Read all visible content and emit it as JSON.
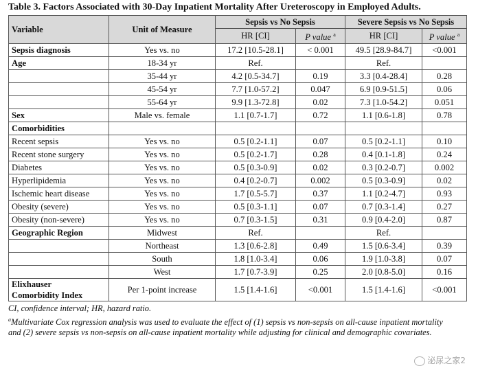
{
  "caption": "Table 3.  Factors Associated with 30-Day Inpatient Mortality After Ureteroscopy in Employed Adults.",
  "headers": {
    "variable": "Variable",
    "unit": "Unit of Measure",
    "group1": "Sepsis vs No Sepsis",
    "group2": "Severe Sepsis vs No Sepsis",
    "hr": "HR [CI]",
    "pvalue": "P value",
    "pvalue_sup": "a"
  },
  "rows": [
    {
      "variable": "Sepsis diagnosis",
      "unit": "Yes vs. no",
      "hr1": "17.2 [10.5-28.1]",
      "p1": "< 0.001",
      "hr2": "49.5 [28.9-84.7]",
      "p2": "<0.001"
    },
    {
      "variable": "Age",
      "unit": "18-34 yr",
      "hr1": "Ref.",
      "p1": "",
      "hr2": "Ref.",
      "p2": ""
    },
    {
      "variable": "",
      "unit": "35-44 yr",
      "hr1": "4.2 [0.5-34.7]",
      "p1": "0.19",
      "hr2": "3.3 [0.4-28.4]",
      "p2": "0.28"
    },
    {
      "variable": "",
      "unit": "45-54 yr",
      "hr1": "7.7 [1.0-57.2]",
      "p1": "0.047",
      "hr2": "6.9 [0.9-51.5]",
      "p2": "0.06"
    },
    {
      "variable": "",
      "unit": "55-64 yr",
      "hr1": "9.9 [1.3-72.8]",
      "p1": "0.02",
      "hr2": "7.3 [1.0-54.2]",
      "p2": "0.051"
    },
    {
      "variable": "Sex",
      "unit": "Male vs. female",
      "hr1": "1.1 [0.7-1.7]",
      "p1": "0.72",
      "hr2": "1.1 [0.6-1.8]",
      "p2": "0.78"
    },
    {
      "variable": "Comorbidities",
      "unit": "",
      "hr1": "",
      "p1": "",
      "hr2": "",
      "p2": ""
    },
    {
      "variable": "Recent sepsis",
      "unit": "Yes vs. no",
      "hr1": "0.5 [0.2-1.1]",
      "p1": "0.07",
      "hr2": "0.5 [0.2-1.1]",
      "p2": "0.10"
    },
    {
      "variable": "Recent stone surgery",
      "unit": "Yes vs. no",
      "hr1": "0.5 [0.2-1.7]",
      "p1": "0.28",
      "hr2": "0.4 [0.1-1.8]",
      "p2": "0.24"
    },
    {
      "variable": "Diabetes",
      "unit": "Yes vs. no",
      "hr1": "0.5 [0.3-0.9]",
      "p1": "0.02",
      "hr2": "0.3 [0.2-0.7]",
      "p2": "0.002"
    },
    {
      "variable": "Hyperlipidemia",
      "unit": "Yes vs. no",
      "hr1": "0.4 [0.2-0.7]",
      "p1": "0.002",
      "hr2": "0.5 [0.3-0.9]",
      "p2": "0.02"
    },
    {
      "variable": "Ischemic heart disease",
      "unit": "Yes vs. no",
      "hr1": "1.7 [0.5-5.7]",
      "p1": "0.37",
      "hr2": "1.1 [0.2-4.7]",
      "p2": "0.93"
    },
    {
      "variable": "Obesity (severe)",
      "unit": "Yes vs. no",
      "hr1": "0.5 [0.3-1.1]",
      "p1": "0.07",
      "hr2": "0.7 [0.3-1.4]",
      "p2": "0.27"
    },
    {
      "variable": "Obesity (non-severe)",
      "unit": "Yes vs. no",
      "hr1": "0.7 [0.3-1.5]",
      "p1": "0.31",
      "hr2": "0.9 [0.4-2.0]",
      "p2": "0.87"
    },
    {
      "variable": "Geographic Region",
      "unit": "Midwest",
      "hr1": "Ref.",
      "p1": "",
      "hr2": "Ref.",
      "p2": ""
    },
    {
      "variable": "",
      "unit": "Northeast",
      "hr1": "1.3 [0.6-2.8]",
      "p1": "0.49",
      "hr2": "1.5 [0.6-3.4]",
      "p2": "0.39"
    },
    {
      "variable": "",
      "unit": "South",
      "hr1": "1.8 [1.0-3.4]",
      "p1": "0.06",
      "hr2": "1.9 [1.0-3.8]",
      "p2": "0.07"
    },
    {
      "variable": "",
      "unit": "West",
      "hr1": "1.7 [0.7-3.9]",
      "p1": "0.25",
      "hr2": "2.0 [0.8-5.0]",
      "p2": "0.16"
    }
  ],
  "last_row": {
    "variable_line1": "Elixhauser",
    "variable_line2": "Comorbidity Index",
    "unit": "Per 1-point increase",
    "hr1": "1.5 [1.4-1.6]",
    "p1": "<0.001",
    "hr2": "1.5 [1.4-1.6]",
    "p2": "<0.001"
  },
  "footnotes": {
    "abbrev": "CI, confidence interval; HR, hazard ratio.",
    "note_marker": "a",
    "note_text": "Multivariate Cox regression analysis was used to evaluate the effect of (1) sepsis vs non-sepsis on all-cause inpatient mortality and (2) severe sepsis vs non-sepsis on all-cause inpatient mortality while adjusting for clinical and demographic covariates."
  },
  "watermark": "泌尿之家2"
}
